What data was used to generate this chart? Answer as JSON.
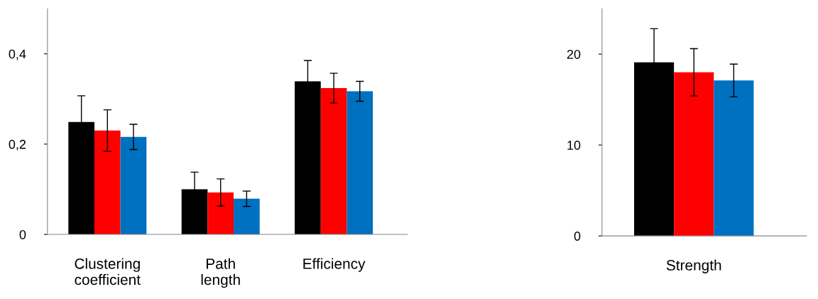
{
  "chart_data": [
    {
      "type": "bar",
      "categories": [
        "Clustering\ncoefficient",
        "Path\nlength",
        "Efficiency"
      ],
      "ylim": [
        0,
        0.5
      ],
      "yticks": [
        {
          "value": 0,
          "label": "0"
        },
        {
          "value": 0.2,
          "label": "0,2"
        },
        {
          "value": 0.4,
          "label": "0,4"
        }
      ],
      "grid": false,
      "series": [
        {
          "color": "#000000",
          "values": [
            0.249,
            0.1,
            0.339
          ],
          "errors": [
            0.058,
            0.038,
            0.046
          ]
        },
        {
          "color": "#ff0000",
          "values": [
            0.23,
            0.093,
            0.324
          ],
          "errors": [
            0.046,
            0.03,
            0.033
          ]
        },
        {
          "color": "#0070c0",
          "values": [
            0.216,
            0.079,
            0.317
          ],
          "errors": [
            0.028,
            0.017,
            0.022
          ]
        }
      ]
    },
    {
      "type": "bar",
      "categories": [
        "Strength"
      ],
      "ylim": [
        0,
        25
      ],
      "yticks": [
        0,
        10,
        20
      ],
      "grid": false,
      "series": [
        {
          "color": "#000000",
          "values": [
            19.1
          ],
          "errors": [
            3.7
          ]
        },
        {
          "color": "#ff0000",
          "values": [
            18.0
          ],
          "errors": [
            2.6
          ]
        },
        {
          "color": "#0070c0",
          "values": [
            17.1
          ],
          "errors": [
            1.8
          ]
        }
      ]
    }
  ]
}
